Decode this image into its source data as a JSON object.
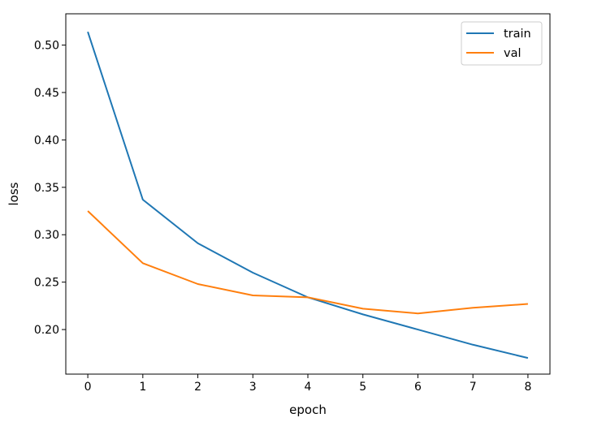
{
  "chart_data": {
    "type": "line",
    "title": "",
    "xlabel": "epoch",
    "ylabel": "loss",
    "xlim": [
      -0.4,
      8.4
    ],
    "ylim": [
      0.153,
      0.533
    ],
    "xticks": [
      0,
      1,
      2,
      3,
      4,
      5,
      6,
      7,
      8
    ],
    "yticks": [
      0.2,
      0.25,
      0.3,
      0.35,
      0.4,
      0.45,
      0.5
    ],
    "ytick_labels": [
      "0.20",
      "0.25",
      "0.30",
      "0.35",
      "0.40",
      "0.45",
      "0.50"
    ],
    "grid": false,
    "legend": "top-right",
    "series": [
      {
        "name": "train",
        "color": "#1f77b4",
        "x": [
          0,
          1,
          2,
          3,
          4,
          5,
          6,
          7,
          8
        ],
        "values": [
          0.514,
          0.337,
          0.291,
          0.26,
          0.234,
          0.216,
          0.2,
          0.184,
          0.17
        ]
      },
      {
        "name": "val",
        "color": "#ff7f0e",
        "x": [
          0,
          1,
          2,
          3,
          4,
          5,
          6,
          7,
          8
        ],
        "values": [
          0.325,
          0.27,
          0.248,
          0.236,
          0.234,
          0.222,
          0.217,
          0.223,
          0.227
        ]
      }
    ]
  }
}
